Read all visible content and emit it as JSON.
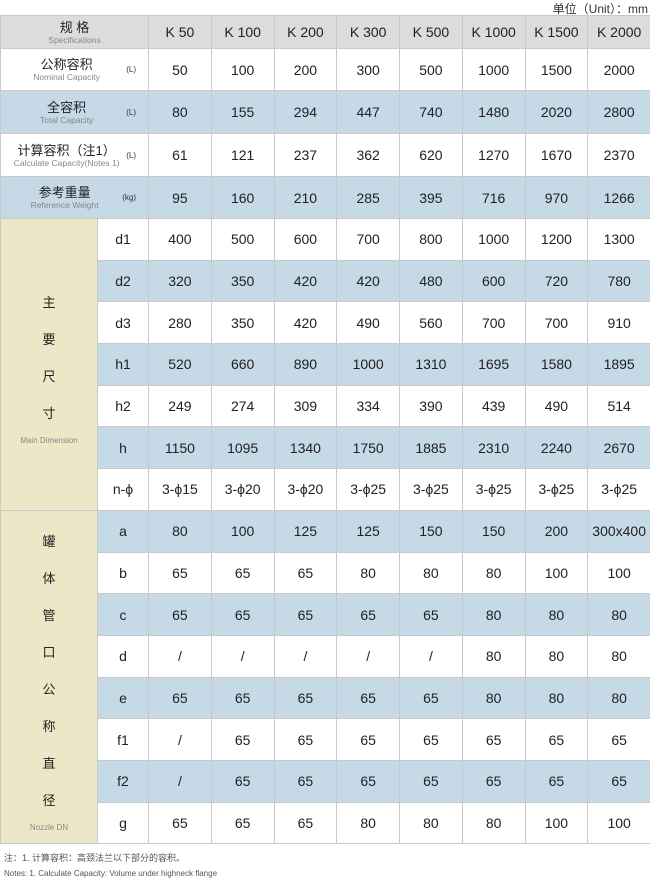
{
  "unit_label": "单位（Unit）：mm",
  "header": {
    "zh": "规 格",
    "en": "Specifications",
    "models": [
      "K 50",
      "K 100",
      "K 200",
      "K 300",
      "K 500",
      "K 1000",
      "K 1500",
      "K 2000"
    ]
  },
  "spec_rows": [
    {
      "zh": "公称容积",
      "en": "Nominal Capacity",
      "unit": "(L)",
      "values": [
        "50",
        "100",
        "200",
        "300",
        "500",
        "1000",
        "1500",
        "2000"
      ],
      "shaded": false
    },
    {
      "zh": "全容积",
      "en": "Total Capacity",
      "unit": "(L)",
      "values": [
        "80",
        "155",
        "294",
        "447",
        "740",
        "1480",
        "2020",
        "2800"
      ],
      "shaded": true
    },
    {
      "zh": "计算容积（注1）",
      "en": "Calculate Capacity(Notes 1)",
      "unit": "(L)",
      "values": [
        "61",
        "121",
        "237",
        "362",
        "620",
        "1270",
        "1670",
        "2370"
      ],
      "shaded": false
    },
    {
      "zh": "参考重量",
      "en": "Reference Weight",
      "unit": "(kg)",
      "values": [
        "95",
        "160",
        "210",
        "285",
        "395",
        "716",
        "970",
        "1266"
      ],
      "shaded": true
    }
  ],
  "groups": [
    {
      "zh": [
        "主",
        "要",
        "尺",
        "寸"
      ],
      "en": "Main Dimension",
      "rows": [
        {
          "label": "d1",
          "values": [
            "400",
            "500",
            "600",
            "700",
            "800",
            "1000",
            "1200",
            "1300"
          ],
          "shaded": false
        },
        {
          "label": "d2",
          "values": [
            "320",
            "350",
            "420",
            "420",
            "480",
            "600",
            "720",
            "780"
          ],
          "shaded": true
        },
        {
          "label": "d3",
          "values": [
            "280",
            "350",
            "420",
            "490",
            "560",
            "700",
            "700",
            "910"
          ],
          "shaded": false
        },
        {
          "label": "h1",
          "values": [
            "520",
            "660",
            "890",
            "1000",
            "1310",
            "1695",
            "1580",
            "1895"
          ],
          "shaded": true
        },
        {
          "label": "h2",
          "values": [
            "249",
            "274",
            "309",
            "334",
            "390",
            "439",
            "490",
            "514"
          ],
          "shaded": false
        },
        {
          "label": "h",
          "values": [
            "1150",
            "1095",
            "1340",
            "1750",
            "1885",
            "2310",
            "2240",
            "2670"
          ],
          "shaded": true
        },
        {
          "label": "n-ϕ",
          "values": [
            "3-ϕ15",
            "3-ϕ20",
            "3-ϕ20",
            "3-ϕ25",
            "3-ϕ25",
            "3-ϕ25",
            "3-ϕ25",
            "3-ϕ25"
          ],
          "shaded": false
        }
      ]
    },
    {
      "zh": [
        "罐",
        "体",
        "管",
        "口",
        "公",
        "称",
        "直",
        "径"
      ],
      "en": "Nozzle DN",
      "rows": [
        {
          "label": "a",
          "values": [
            "80",
            "100",
            "125",
            "125",
            "150",
            "150",
            "200",
            "300x400"
          ],
          "shaded": true
        },
        {
          "label": "b",
          "values": [
            "65",
            "65",
            "65",
            "80",
            "80",
            "80",
            "100",
            "100"
          ],
          "shaded": false
        },
        {
          "label": "c",
          "values": [
            "65",
            "65",
            "65",
            "65",
            "65",
            "80",
            "80",
            "80"
          ],
          "shaded": true
        },
        {
          "label": "d",
          "values": [
            "/",
            "/",
            "/",
            "/",
            "/",
            "80",
            "80",
            "80"
          ],
          "shaded": false
        },
        {
          "label": "e",
          "values": [
            "65",
            "65",
            "65",
            "65",
            "65",
            "80",
            "80",
            "80"
          ],
          "shaded": true
        },
        {
          "label": "f1",
          "values": [
            "/",
            "65",
            "65",
            "65",
            "65",
            "65",
            "65",
            "65"
          ],
          "shaded": false
        },
        {
          "label": "f2",
          "values": [
            "/",
            "65",
            "65",
            "65",
            "65",
            "65",
            "65",
            "65"
          ],
          "shaded": true
        },
        {
          "label": "g",
          "values": [
            "65",
            "65",
            "65",
            "80",
            "80",
            "80",
            "100",
            "100"
          ],
          "shaded": false
        }
      ]
    }
  ],
  "notes": {
    "zh": "注：1. 计算容积：高颈法兰以下部分的容积。",
    "en": "Notes: 1. Calculate Capacity: Volume under highneck flange"
  }
}
